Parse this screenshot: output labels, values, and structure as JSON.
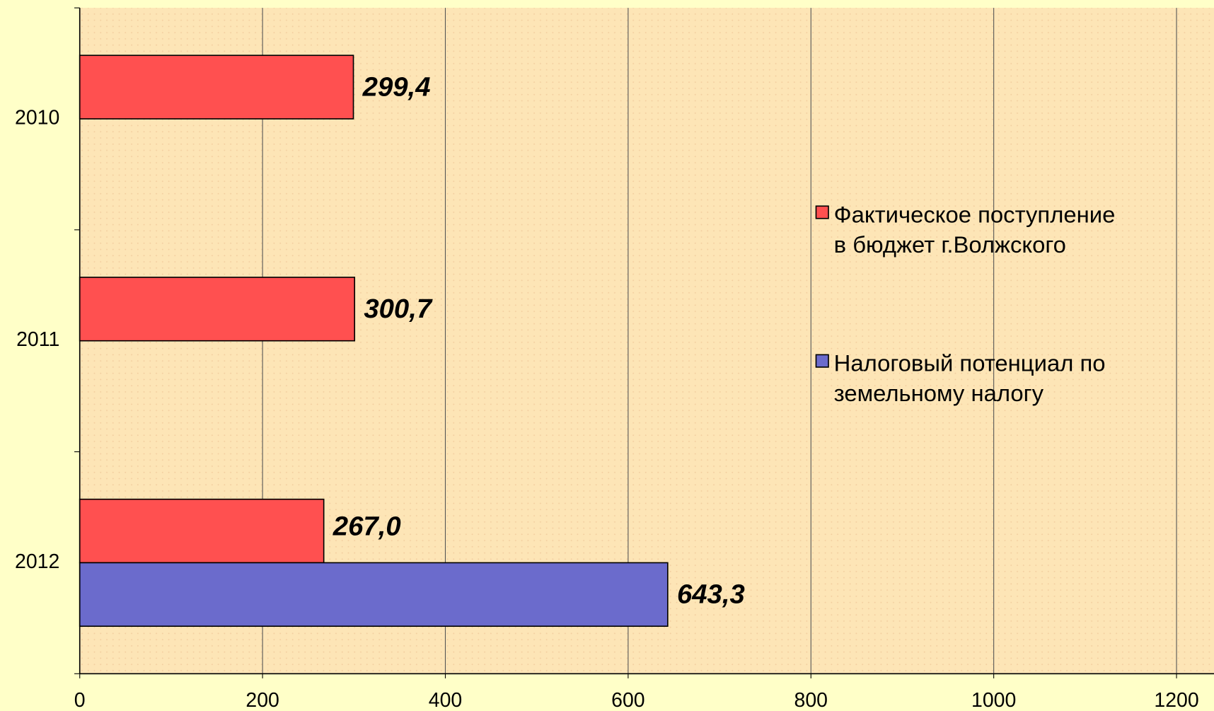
{
  "chart_data": {
    "type": "hbar",
    "categories": [
      "2010",
      "2011",
      "2012"
    ],
    "series": [
      {
        "name": "Фактическое поступление в бюджет г.Волжского",
        "color": "#ff5050",
        "values": [
          299.4,
          300.7,
          267.0
        ],
        "value_labels": [
          "299,4",
          "300,7",
          "267,0"
        ]
      },
      {
        "name": "Налоговый потенциал по земельному налогу",
        "color": "#6b6bcc",
        "values": [
          null,
          null,
          643.3
        ],
        "value_labels": [
          null,
          null,
          "643,3"
        ]
      }
    ],
    "xlim": [
      0,
      1241
    ],
    "xticks": [
      0,
      200,
      400,
      600,
      800,
      1000,
      1200
    ],
    "grid": true,
    "legend": "right"
  }
}
